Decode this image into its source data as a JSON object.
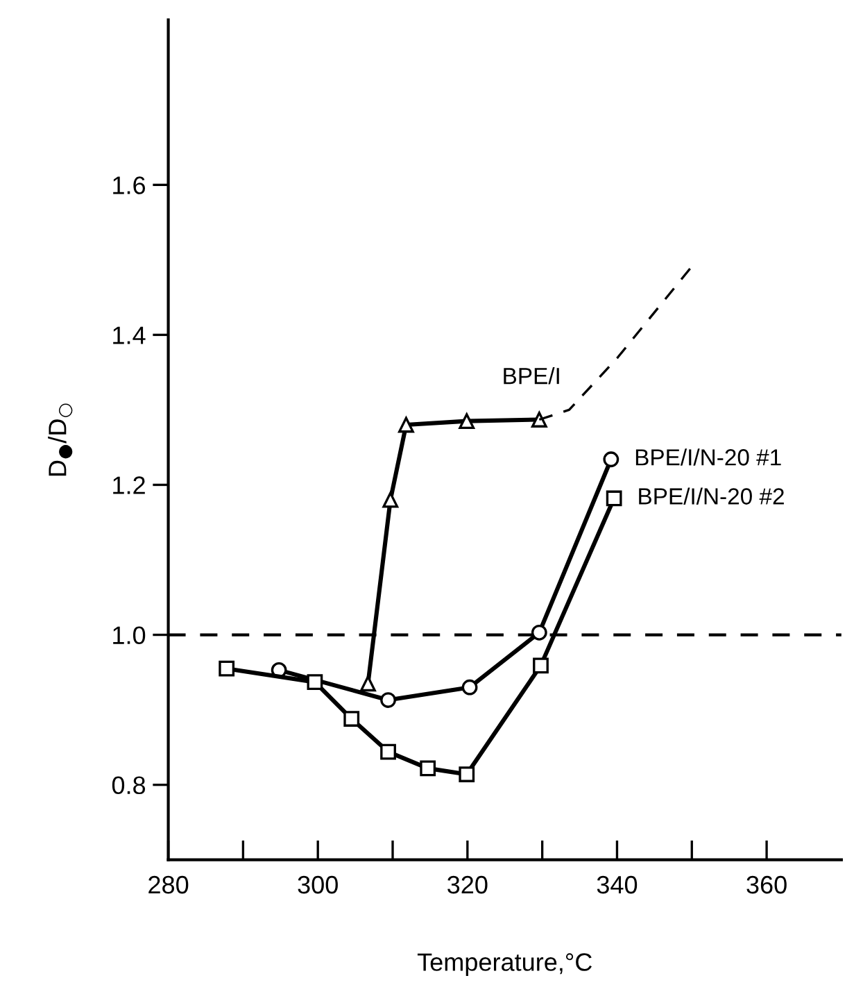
{
  "chart_data": {
    "type": "line",
    "xlabel": "Temperature,°C",
    "ylabel": "D$_{●}$/D$_{○}$",
    "xlim": [
      280,
      370
    ],
    "ylim": [
      0.7,
      1.82
    ],
    "xticks": [
      280,
      {
        "value": 290,
        "label": null
      },
      300,
      {
        "value": 310,
        "label": null
      },
      320,
      {
        "value": 330,
        "label": null
      },
      340,
      {
        "value": 350,
        "label": null
      },
      360
    ],
    "yticks": [
      0.8,
      {
        "value": 1.0,
        "label": "1.0"
      },
      1.2,
      1.4,
      1.6
    ],
    "grid": false,
    "legend": false,
    "line_style": "solid",
    "ref_lines": [
      {
        "axis": "y",
        "value": 1.0,
        "color": "#000000",
        "line_style": "dashed"
      }
    ],
    "series": [
      {
        "name": "BPE/I",
        "color": "#000000",
        "marker": "triangle",
        "x": [
          306.7,
          309.7,
          311.8,
          319.9,
          329.6
        ],
        "values": [
          0.935,
          1.18,
          1.28,
          1.285,
          1.287
        ]
      },
      {
        "color": "#000000",
        "marker": "none",
        "line_style": "dashed",
        "x": [
          329.6,
          333.6,
          340.1,
          349.9
        ],
        "values": [
          1.287,
          1.3,
          1.37,
          1.49
        ]
      },
      {
        "name": "BPE/I/N-20 #1",
        "color": "#000000",
        "marker": "circle",
        "x": [
          294.8,
          309.4,
          320.3,
          329.6,
          339.2
        ],
        "values": [
          0.953,
          0.913,
          0.93,
          1.003,
          1.234
        ]
      },
      {
        "name": "BPE/I/N-20 #2",
        "color": "#000000",
        "marker": "square",
        "x": [
          287.8,
          299.6,
          304.5,
          309.4,
          314.7,
          319.9,
          329.8,
          339.6
        ],
        "values": [
          0.955,
          0.937,
          0.888,
          0.844,
          0.822,
          0.814,
          0.959,
          1.182
        ]
      }
    ]
  }
}
